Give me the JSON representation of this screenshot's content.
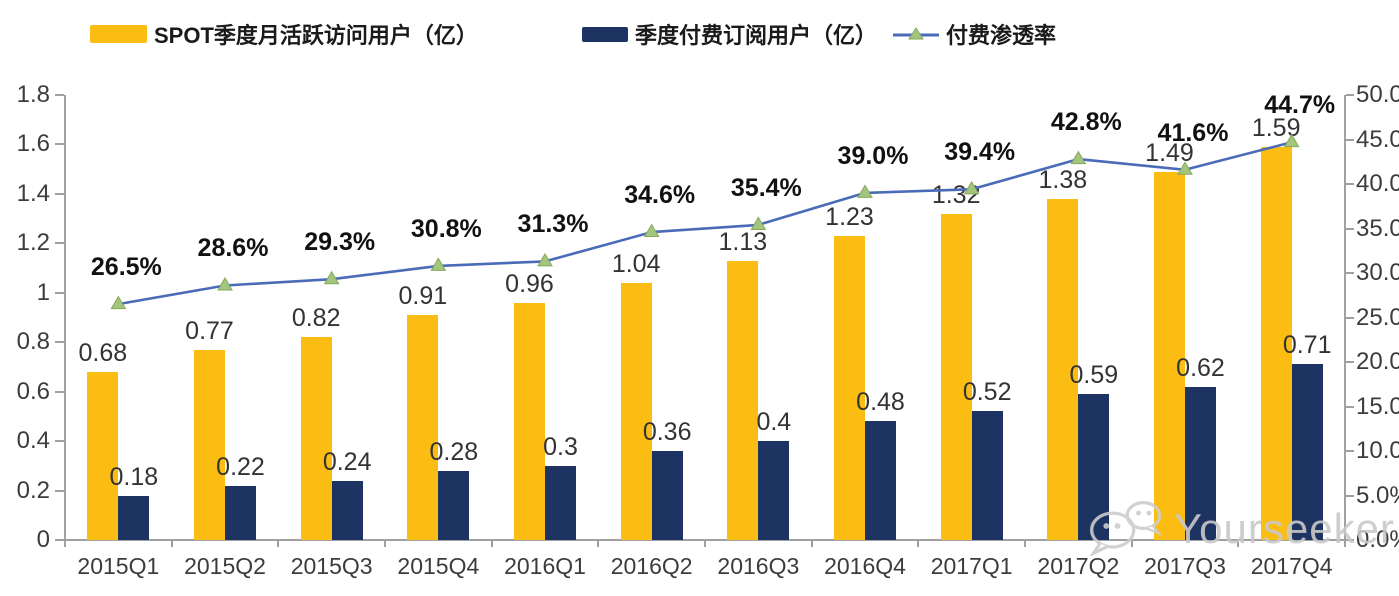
{
  "legend": {
    "items": [
      {
        "label": "SPOT季度月活跃访问用户（亿）",
        "swatch": "yellow-bar"
      },
      {
        "label": "季度付费订阅用户（亿）",
        "swatch": "navy-bar"
      },
      {
        "label": "付费渗透率",
        "swatch": "line-marker"
      }
    ]
  },
  "watermark": {
    "text": "Yourseeker"
  },
  "colors": {
    "mau_bar": "#FBBD11",
    "sub_bar": "#1D3362",
    "line": "#4A6CB8",
    "marker_fill": "#A3C57E",
    "marker_stroke": "#84A95C",
    "axis": "#A0A0A0",
    "watermark": "#C9C9C9"
  },
  "chart_data": {
    "type": "bar",
    "subtype": "combo-bar-line-dual-axis",
    "title": "",
    "categories": [
      "2015Q1",
      "2015Q2",
      "2015Q3",
      "2015Q4",
      "2016Q1",
      "2016Q2",
      "2016Q3",
      "2016Q4",
      "2017Q1",
      "2017Q2",
      "2017Q3",
      "2017Q4"
    ],
    "series": [
      {
        "name": "SPOT季度月活跃访问用户（亿）",
        "type": "bar",
        "axis": "left",
        "values": [
          0.68,
          0.77,
          0.82,
          0.91,
          0.96,
          1.04,
          1.13,
          1.23,
          1.32,
          1.38,
          1.49,
          1.59
        ],
        "labels": [
          "0.68",
          "0.77",
          "0.82",
          "0.91",
          "0.96",
          "1.04",
          "1.13",
          "1.23",
          "1.32",
          "1.38",
          "1.49",
          "1.59"
        ]
      },
      {
        "name": "季度付费订阅用户（亿）",
        "type": "bar",
        "axis": "left",
        "values": [
          0.18,
          0.22,
          0.24,
          0.28,
          0.3,
          0.36,
          0.4,
          0.48,
          0.52,
          0.59,
          0.62,
          0.71
        ],
        "labels": [
          "0.18",
          "0.22",
          "0.24",
          "0.28",
          "0.3",
          "0.36",
          "0.4",
          "0.48",
          "0.52",
          "0.59",
          "0.62",
          "0.71"
        ]
      },
      {
        "name": "付费渗透率",
        "type": "line",
        "axis": "right",
        "values": [
          26.5,
          28.6,
          29.3,
          30.8,
          31.3,
          34.6,
          35.4,
          39.0,
          39.4,
          42.8,
          41.6,
          44.7
        ],
        "labels": [
          "26.5%",
          "28.6%",
          "29.3%",
          "30.8%",
          "31.3%",
          "34.6%",
          "35.4%",
          "39.0%",
          "39.4%",
          "42.8%",
          "41.6%",
          "44.7%"
        ]
      }
    ],
    "left_axis": {
      "min": 0,
      "max": 1.8,
      "tick_step": 0.2,
      "tick_labels": [
        "0",
        "0.2",
        "0.4",
        "0.6",
        "0.8",
        "1",
        "1.2",
        "1.4",
        "1.6",
        "1.8"
      ]
    },
    "right_axis": {
      "min": 0,
      "max": 50,
      "tick_step": 5,
      "tick_labels": [
        "0.0%",
        "5.0%",
        "10.0%",
        "15.0%",
        "20.0%",
        "25.0%",
        "30.0%",
        "35.0%",
        "40.0%",
        "45.0%",
        "50.0%"
      ]
    },
    "grid": false,
    "legend_position": "top"
  }
}
